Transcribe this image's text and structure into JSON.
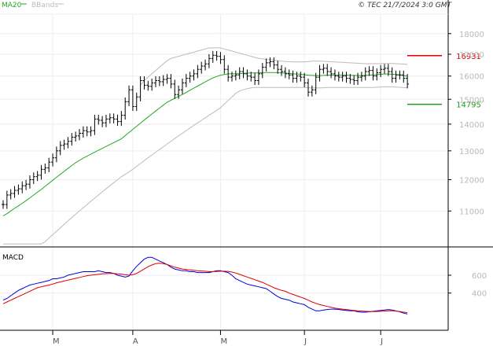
{
  "header": {
    "legend_ma": "MA20",
    "legend_bb": "BBands",
    "copyright": "© TEC 21/7/2024 3:0 GMT"
  },
  "colors": {
    "price": "#000000",
    "ma": "#22aa22",
    "bbands": "#bbbbbb",
    "resistance": "#dd0000",
    "support": "#229922",
    "macd": "#0000dd",
    "signal": "#dd0000",
    "grid": "#eeeeee",
    "axis_text": "#b8b8b8"
  },
  "chart_data": [
    {
      "type": "line",
      "name": "price",
      "yscale": "log",
      "ylim": [
        10000,
        19000
      ],
      "yticks": [
        {
          "value": 11000,
          "label": "11000"
        },
        {
          "value": 12000,
          "label": "12000"
        },
        {
          "value": 13000,
          "label": "13000"
        },
        {
          "value": 14000,
          "label": "14000"
        },
        {
          "value": 15000,
          "label": "15000"
        },
        {
          "value": 16000,
          "label": "16000"
        },
        {
          "value": 17000,
          "label": "17000"
        },
        {
          "value": 18000,
          "label": "18000"
        }
      ],
      "xticks": [
        "M",
        "A",
        "M",
        "J",
        "J"
      ],
      "xtick_index": [
        13,
        34,
        57,
        79,
        99
      ],
      "levels": [
        {
          "name": "resistance",
          "value": 16931,
          "label": "16931"
        },
        {
          "name": "support",
          "value": 14795,
          "label": "14795"
        }
      ],
      "price": [
        11200,
        11500,
        11550,
        11650,
        11700,
        11800,
        11850,
        12000,
        12100,
        12150,
        12350,
        12400,
        12600,
        12750,
        13000,
        13200,
        13250,
        13350,
        13500,
        13550,
        13650,
        13750,
        13700,
        13750,
        14200,
        14150,
        14050,
        14200,
        14250,
        14200,
        14100,
        14350,
        14900,
        15400,
        14700,
        15100,
        15800,
        15600,
        15550,
        15700,
        15800,
        15750,
        15850,
        15900,
        15650,
        15200,
        15400,
        15700,
        15900,
        16000,
        16100,
        16300,
        16450,
        16550,
        16800,
        16950,
        16900,
        16750,
        16300,
        15950,
        16000,
        16050,
        16200,
        16100,
        16000,
        15950,
        15800,
        16100,
        16400,
        16600,
        16650,
        16500,
        16300,
        16200,
        16100,
        16050,
        15900,
        16000,
        15950,
        15700,
        15300,
        15400,
        15950,
        16300,
        16350,
        16200,
        16100,
        16000,
        15950,
        16000,
        15900,
        15850,
        15800,
        15950,
        16000,
        16200,
        16250,
        16000,
        16150,
        16300,
        16350,
        16200,
        15900,
        16050,
        16050,
        15900,
        15650
      ],
      "ma20": [
        10850,
        10920,
        11000,
        11080,
        11160,
        11240,
        11320,
        11410,
        11500,
        11590,
        11680,
        11780,
        11880,
        11980,
        12080,
        12180,
        12280,
        12380,
        12480,
        12580,
        12660,
        12740,
        12810,
        12880,
        12950,
        13020,
        13090,
        13160,
        13230,
        13300,
        13370,
        13440,
        13560,
        13680,
        13800,
        13920,
        14040,
        14160,
        14280,
        14400,
        14520,
        14640,
        14760,
        14880,
        14960,
        15040,
        15120,
        15200,
        15290,
        15380,
        15470,
        15560,
        15650,
        15740,
        15830,
        15920,
        15980,
        16040,
        16070,
        16100,
        16100,
        16100,
        16110,
        16120,
        16130,
        16140,
        16140,
        16140,
        16150,
        16160,
        16160,
        16160,
        16150,
        16140,
        16130,
        16120,
        16100,
        16090,
        16080,
        16060,
        16040,
        16030,
        16020,
        16020,
        16030,
        16040,
        16040,
        16040,
        16040,
        16040,
        16040,
        16030,
        16030,
        16020,
        16020,
        16030,
        16040,
        16050,
        16060,
        16080,
        16090,
        16090,
        16080,
        16070,
        16050,
        16020,
        16000
      ],
      "bb_upper": [
        null,
        null,
        null,
        null,
        null,
        null,
        null,
        null,
        null,
        null,
        null,
        null,
        null,
        null,
        null,
        null,
        null,
        null,
        null,
        null,
        null,
        null,
        null,
        null,
        null,
        null,
        null,
        null,
        null,
        null,
        null,
        null,
        null,
        null,
        null,
        null,
        15600,
        15800,
        15950,
        16100,
        16250,
        16400,
        16550,
        16700,
        16800,
        16850,
        16900,
        16950,
        17000,
        17050,
        17100,
        17150,
        17200,
        17250,
        17300,
        17300,
        17300,
        17300,
        17250,
        17200,
        17150,
        17100,
        17050,
        17000,
        16950,
        16900,
        16850,
        16800,
        16780,
        16760,
        16740,
        16720,
        16700,
        16680,
        16660,
        16650,
        16640,
        16640,
        16640,
        16640,
        16660,
        16680,
        16680,
        16680,
        16670,
        16660,
        16650,
        16640,
        16630,
        16620,
        16610,
        16600,
        16590,
        16580,
        16570,
        16560,
        16560,
        16560,
        16560,
        16560,
        16570,
        16570,
        16570,
        16560,
        16550,
        16540,
        16530
      ],
      "bb_lower": [
        10040,
        10040,
        10040,
        10040,
        10040,
        10040,
        10040,
        10040,
        10040,
        10040,
        10040,
        10100,
        10200,
        10300,
        10400,
        10500,
        10600,
        10700,
        10800,
        10900,
        11000,
        11100,
        11200,
        11300,
        11400,
        11500,
        11600,
        11700,
        11800,
        11900,
        12000,
        12100,
        12180,
        12260,
        12350,
        12450,
        12550,
        12650,
        12750,
        12850,
        12950,
        13050,
        13150,
        13250,
        13350,
        13450,
        13550,
        13650,
        13750,
        13850,
        13950,
        14050,
        14150,
        14250,
        14350,
        14450,
        14550,
        14650,
        14800,
        14950,
        15100,
        15250,
        15350,
        15400,
        15450,
        15480,
        15500,
        15500,
        15500,
        15500,
        15500,
        15500,
        15500,
        15500,
        15500,
        15500,
        15500,
        15500,
        15500,
        15500,
        15490,
        15480,
        15480,
        15480,
        15490,
        15500,
        15500,
        15500,
        15500,
        15500,
        15500,
        15500,
        15500,
        15500,
        15500,
        15500,
        15500,
        15500,
        15510,
        15520,
        15530,
        15530,
        15530,
        15520,
        15510,
        15500,
        15490
      ]
    },
    {
      "type": "line",
      "name": "MACD",
      "title": "MACD",
      "ylim": [
        0,
        900
      ],
      "yticks": [
        {
          "value": 400,
          "label": "400"
        },
        {
          "value": 600,
          "label": "600"
        }
      ],
      "series": [
        {
          "name": "macd",
          "values": [
            320,
            340,
            370,
            400,
            430,
            450,
            470,
            490,
            500,
            510,
            520,
            530,
            540,
            560,
            560,
            570,
            580,
            600,
            610,
            620,
            630,
            640,
            640,
            640,
            640,
            650,
            640,
            630,
            630,
            620,
            600,
            590,
            580,
            590,
            650,
            700,
            740,
            780,
            800,
            800,
            780,
            760,
            740,
            720,
            690,
            670,
            660,
            650,
            650,
            640,
            640,
            630,
            630,
            630,
            630,
            640,
            650,
            650,
            640,
            630,
            600,
            560,
            540,
            520,
            500,
            490,
            480,
            470,
            460,
            450,
            420,
            390,
            360,
            340,
            330,
            320,
            300,
            290,
            280,
            270,
            240,
            220,
            200,
            200,
            210,
            215,
            220,
            220,
            215,
            210,
            205,
            200,
            200,
            190,
            185,
            185,
            190,
            195,
            200,
            205,
            210,
            215,
            210,
            200,
            190,
            175,
            165
          ]
        },
        {
          "name": "signal",
          "values": [
            280,
            300,
            320,
            340,
            360,
            380,
            400,
            420,
            440,
            460,
            470,
            480,
            490,
            500,
            515,
            525,
            535,
            545,
            555,
            565,
            575,
            585,
            595,
            600,
            605,
            610,
            615,
            618,
            620,
            620,
            615,
            612,
            605,
            600,
            605,
            620,
            645,
            670,
            695,
            715,
            730,
            735,
            730,
            720,
            705,
            690,
            680,
            670,
            665,
            660,
            655,
            650,
            648,
            645,
            640,
            640,
            642,
            645,
            645,
            643,
            635,
            625,
            610,
            595,
            580,
            565,
            550,
            535,
            520,
            500,
            480,
            460,
            445,
            430,
            420,
            400,
            385,
            370,
            355,
            340,
            320,
            300,
            285,
            270,
            260,
            250,
            240,
            230,
            225,
            220,
            215,
            210,
            205,
            200,
            198,
            195,
            193,
            192,
            193,
            195,
            198,
            200,
            200,
            198,
            193,
            185,
            178
          ]
        }
      ]
    }
  ]
}
